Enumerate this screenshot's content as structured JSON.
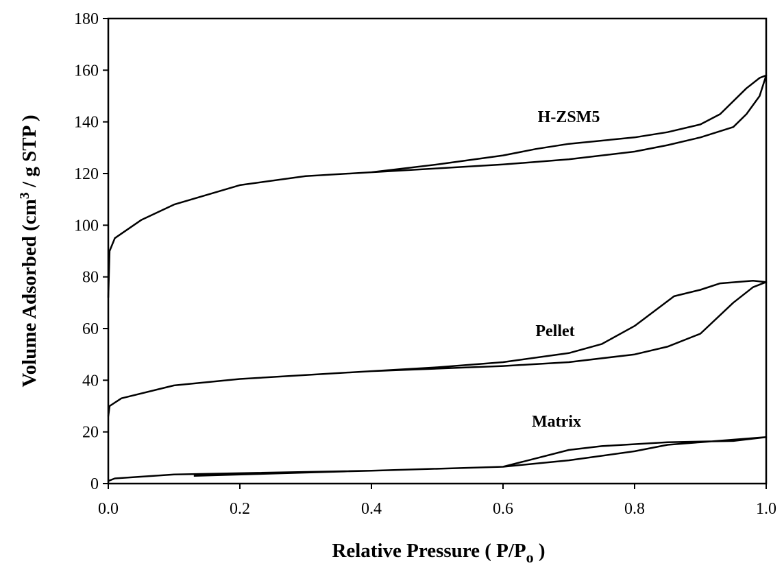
{
  "chart_data": {
    "type": "line",
    "x_label": {
      "text": "Relative Pressure ( P/P",
      "sub": "o",
      "rest": " )"
    },
    "y_label": {
      "text": "Volume Adsorbed (cm",
      "sup": "3",
      "rest": " / g STP )"
    },
    "xlim": [
      0,
      1
    ],
    "ylim": [
      0,
      180
    ],
    "xticks": [
      {
        "value": 0,
        "label": "0.0"
      },
      0.2,
      0.4,
      0.6,
      0.8,
      {
        "value": 1,
        "label": "1.0"
      }
    ],
    "yticks": [
      0,
      20,
      40,
      60,
      80,
      100,
      120,
      140,
      160,
      180
    ],
    "color": "#000000",
    "series": [
      {
        "name": "H-ZSM5",
        "x": [
          0,
          0.002,
          0.01,
          0.05,
          0.1,
          0.2,
          0.3,
          0.4,
          0.5,
          0.6,
          0.7,
          0.8,
          0.85,
          0.9,
          0.95,
          0.97,
          0.99,
          1.0,
          0.99,
          0.97,
          0.93,
          0.9,
          0.85,
          0.8,
          0.7,
          0.65,
          0.6,
          0.5,
          0.4
        ],
        "values": [
          72,
          90,
          95,
          102,
          108,
          115.5,
          119,
          120.5,
          122,
          123.5,
          125.5,
          128.5,
          131,
          134,
          138,
          143,
          150,
          158,
          157,
          153,
          143,
          139,
          136,
          134,
          131.5,
          129.5,
          127,
          123.5,
          120.5
        ]
      },
      {
        "name": "Pellet",
        "x": [
          0,
          0.002,
          0.02,
          0.1,
          0.2,
          0.3,
          0.4,
          0.5,
          0.6,
          0.7,
          0.8,
          0.85,
          0.9,
          0.95,
          0.98,
          1.0,
          0.98,
          0.93,
          0.9,
          0.86,
          0.8,
          0.75,
          0.7,
          0.6,
          0.5,
          0.4
        ],
        "values": [
          26,
          30,
          33,
          38,
          40.5,
          42,
          43.5,
          44.5,
          45.5,
          47,
          50,
          53,
          58,
          70,
          76,
          78,
          78.5,
          77.5,
          75,
          72.5,
          61,
          54,
          50.5,
          47,
          45,
          43.5
        ]
      },
      {
        "name": "Matrix",
        "x": [
          0,
          0.01,
          0.1,
          0.2,
          0.4,
          0.6,
          0.7,
          0.8,
          0.85,
          0.9,
          1.0,
          0.95,
          0.85,
          0.75,
          0.7,
          0.6,
          0.4,
          0.13
        ],
        "values": [
          1,
          2,
          3.5,
          4,
          5,
          6.5,
          9,
          12.5,
          15,
          16,
          18,
          16.5,
          16,
          14.5,
          13,
          6.5,
          5,
          3
        ]
      }
    ]
  }
}
